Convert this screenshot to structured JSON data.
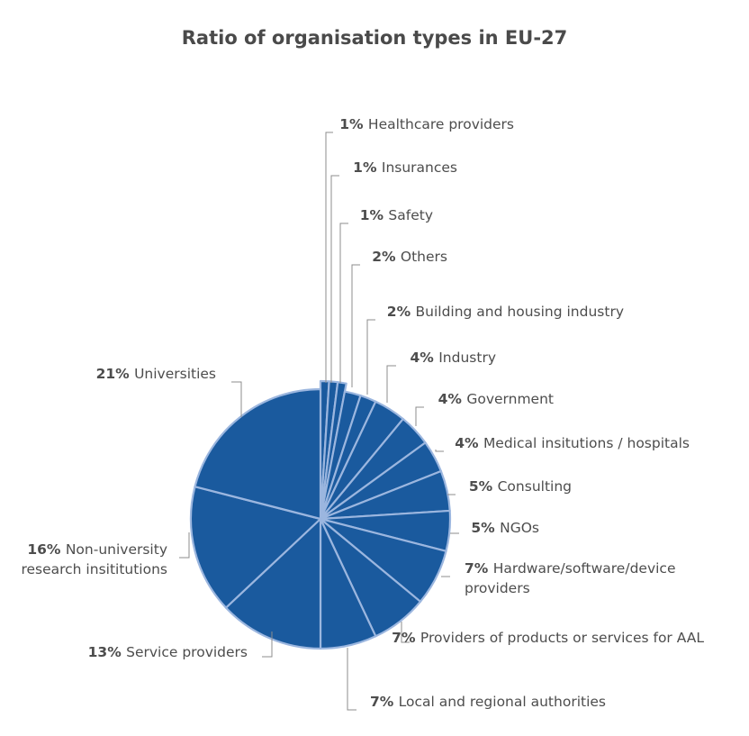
{
  "chart_data": {
    "type": "pie",
    "title": "Ratio of organisation types in EU-27",
    "unit": "%",
    "color": "#1a5a9e",
    "explode_small_slices": true,
    "slices": [
      {
        "value": 1,
        "pct_label": "1%",
        "name": [
          "Healthcare providers"
        ]
      },
      {
        "value": 1,
        "pct_label": "1%",
        "name": [
          "Insurances"
        ]
      },
      {
        "value": 1,
        "pct_label": "1%",
        "name": [
          "Safety"
        ]
      },
      {
        "value": 2,
        "pct_label": "2%",
        "name": [
          "Others"
        ]
      },
      {
        "value": 2,
        "pct_label": "2%",
        "name": [
          "Building and housing industry"
        ]
      },
      {
        "value": 4,
        "pct_label": "4%",
        "name": [
          "Industry"
        ]
      },
      {
        "value": 4,
        "pct_label": "4%",
        "name": [
          "Government"
        ]
      },
      {
        "value": 4,
        "pct_label": "4%",
        "name": [
          "Medical insitutions / hospitals"
        ]
      },
      {
        "value": 5,
        "pct_label": "5%",
        "name": [
          "Consulting"
        ]
      },
      {
        "value": 5,
        "pct_label": "5%",
        "name": [
          "NGOs"
        ]
      },
      {
        "value": 7,
        "pct_label": "7%",
        "name": [
          "Hardware/software/device",
          "providers"
        ]
      },
      {
        "value": 7,
        "pct_label": "7%",
        "name": [
          "Providers of products or services for AAL"
        ]
      },
      {
        "value": 7,
        "pct_label": "7%",
        "name": [
          "Local and regional authorities"
        ]
      },
      {
        "value": 13,
        "pct_label": "13%",
        "name": [
          "Service providers"
        ]
      },
      {
        "value": 16,
        "pct_label": "16%",
        "name": [
          "Non-university",
          "research insititutions"
        ]
      },
      {
        "value": 21,
        "pct_label": "21%",
        "name": [
          "Universities"
        ]
      }
    ]
  }
}
